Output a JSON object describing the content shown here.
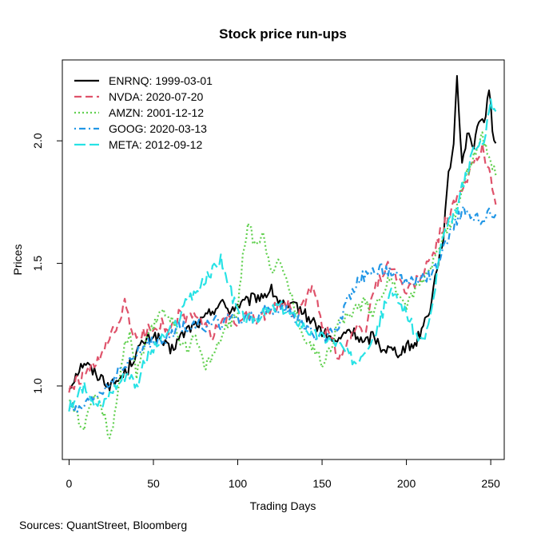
{
  "chart_data": {
    "type": "line",
    "title": "Stock price run-ups",
    "xlabel": "Trading Days",
    "ylabel": "Prices",
    "source": "Sources: QuantStreet, Bloomberg",
    "xlim": [
      -4,
      258
    ],
    "ylim": [
      0.7,
      2.33
    ],
    "xticks": [
      0,
      50,
      100,
      150,
      200,
      250
    ],
    "xtick_labels": [
      "0",
      "50",
      "100",
      "150",
      "200",
      "250"
    ],
    "yticks": [
      1.0,
      1.5,
      2.0
    ],
    "ytick_labels": [
      "1.0",
      "1.5",
      "2.0"
    ],
    "legend_position": "top-left",
    "series": [
      {
        "name": "ENRNQ: 1999-03-01",
        "color": "#000000",
        "dash": "solid",
        "anchors": [
          [
            0,
            0.99
          ],
          [
            4,
            1.05
          ],
          [
            9,
            1.1
          ],
          [
            14,
            1.06
          ],
          [
            20,
            1.03
          ],
          [
            25,
            1.0
          ],
          [
            30,
            1.03
          ],
          [
            35,
            1.07
          ],
          [
            40,
            1.14
          ],
          [
            45,
            1.18
          ],
          [
            50,
            1.21
          ],
          [
            55,
            1.18
          ],
          [
            60,
            1.14
          ],
          [
            65,
            1.19
          ],
          [
            70,
            1.23
          ],
          [
            75,
            1.25
          ],
          [
            80,
            1.27
          ],
          [
            85,
            1.31
          ],
          [
            90,
            1.34
          ],
          [
            95,
            1.31
          ],
          [
            100,
            1.33
          ],
          [
            105,
            1.34
          ],
          [
            110,
            1.36
          ],
          [
            115,
            1.37
          ],
          [
            120,
            1.39
          ],
          [
            125,
            1.34
          ],
          [
            130,
            1.31
          ],
          [
            135,
            1.33
          ],
          [
            140,
            1.29
          ],
          [
            145,
            1.26
          ],
          [
            150,
            1.22
          ],
          [
            155,
            1.19
          ],
          [
            160,
            1.18
          ],
          [
            165,
            1.23
          ],
          [
            170,
            1.21
          ],
          [
            175,
            1.17
          ],
          [
            180,
            1.21
          ],
          [
            185,
            1.16
          ],
          [
            190,
            1.15
          ],
          [
            195,
            1.14
          ],
          [
            200,
            1.16
          ],
          [
            205,
            1.17
          ],
          [
            210,
            1.25
          ],
          [
            214,
            1.32
          ],
          [
            218,
            1.48
          ],
          [
            222,
            1.62
          ],
          [
            225,
            1.85
          ],
          [
            228,
            2.0
          ],
          [
            230,
            2.26
          ],
          [
            233,
            1.92
          ],
          [
            237,
            2.05
          ],
          [
            240,
            1.95
          ],
          [
            243,
            2.1
          ],
          [
            246,
            2.05
          ],
          [
            249,
            2.22
          ],
          [
            251,
            2.05
          ],
          [
            253,
            1.99
          ]
        ],
        "values": []
      },
      {
        "name": "NVDA: 2020-07-20",
        "color": "#DF536B",
        "dash": "dashed",
        "anchors": [
          [
            0,
            0.98
          ],
          [
            5,
            1.02
          ],
          [
            10,
            1.05
          ],
          [
            15,
            1.08
          ],
          [
            20,
            1.13
          ],
          [
            25,
            1.21
          ],
          [
            30,
            1.24
          ],
          [
            33,
            1.36
          ],
          [
            36,
            1.26
          ],
          [
            40,
            1.18
          ],
          [
            45,
            1.22
          ],
          [
            50,
            1.24
          ],
          [
            55,
            1.26
          ],
          [
            60,
            1.22
          ],
          [
            65,
            1.29
          ],
          [
            70,
            1.27
          ],
          [
            75,
            1.3
          ],
          [
            80,
            1.24
          ],
          [
            85,
            1.21
          ],
          [
            90,
            1.26
          ],
          [
            95,
            1.28
          ],
          [
            100,
            1.25
          ],
          [
            105,
            1.3
          ],
          [
            110,
            1.26
          ],
          [
            115,
            1.29
          ],
          [
            120,
            1.31
          ],
          [
            125,
            1.34
          ],
          [
            130,
            1.33
          ],
          [
            135,
            1.28
          ],
          [
            140,
            1.35
          ],
          [
            145,
            1.4
          ],
          [
            150,
            1.26
          ],
          [
            155,
            1.2
          ],
          [
            160,
            1.12
          ],
          [
            165,
            1.18
          ],
          [
            170,
            1.24
          ],
          [
            175,
            1.2
          ],
          [
            180,
            1.38
          ],
          [
            185,
            1.45
          ],
          [
            190,
            1.5
          ],
          [
            195,
            1.44
          ],
          [
            200,
            1.38
          ],
          [
            205,
            1.42
          ],
          [
            210,
            1.46
          ],
          [
            215,
            1.52
          ],
          [
            220,
            1.62
          ],
          [
            225,
            1.7
          ],
          [
            230,
            1.76
          ],
          [
            235,
            1.82
          ],
          [
            240,
            1.92
          ],
          [
            245,
            1.97
          ],
          [
            250,
            1.85
          ],
          [
            253,
            1.74
          ]
        ],
        "values": []
      },
      {
        "name": "AMZN: 2001-12-12",
        "color": "#61D04F",
        "dash": "dotted",
        "anchors": [
          [
            0,
            0.95
          ],
          [
            5,
            0.88
          ],
          [
            8,
            0.82
          ],
          [
            12,
            0.89
          ],
          [
            16,
            0.96
          ],
          [
            20,
            0.9
          ],
          [
            24,
            0.77
          ],
          [
            28,
            0.93
          ],
          [
            32,
            1.14
          ],
          [
            36,
            1.22
          ],
          [
            40,
            1.05
          ],
          [
            45,
            1.16
          ],
          [
            50,
            1.24
          ],
          [
            55,
            1.32
          ],
          [
            60,
            1.28
          ],
          [
            65,
            1.2
          ],
          [
            70,
            1.16
          ],
          [
            75,
            1.2
          ],
          [
            80,
            1.08
          ],
          [
            85,
            1.12
          ],
          [
            90,
            1.2
          ],
          [
            95,
            1.25
          ],
          [
            100,
            1.31
          ],
          [
            103,
            1.52
          ],
          [
            106,
            1.67
          ],
          [
            110,
            1.58
          ],
          [
            115,
            1.62
          ],
          [
            120,
            1.48
          ],
          [
            125,
            1.5
          ],
          [
            130,
            1.42
          ],
          [
            135,
            1.28
          ],
          [
            140,
            1.2
          ],
          [
            145,
            1.15
          ],
          [
            150,
            1.1
          ],
          [
            155,
            1.16
          ],
          [
            160,
            1.26
          ],
          [
            165,
            1.28
          ],
          [
            170,
            1.32
          ],
          [
            175,
            1.34
          ],
          [
            180,
            1.3
          ],
          [
            185,
            1.38
          ],
          [
            190,
            1.43
          ],
          [
            195,
            1.39
          ],
          [
            200,
            1.33
          ],
          [
            205,
            1.39
          ],
          [
            210,
            1.44
          ],
          [
            215,
            1.5
          ],
          [
            220,
            1.58
          ],
          [
            225,
            1.65
          ],
          [
            230,
            1.72
          ],
          [
            235,
            1.85
          ],
          [
            240,
            1.94
          ],
          [
            245,
            2.02
          ],
          [
            250,
            1.92
          ],
          [
            253,
            1.86
          ]
        ],
        "values": []
      },
      {
        "name": "GOOG: 2020-03-13",
        "color": "#2297E6",
        "dash": "dotdash",
        "anchors": [
          [
            0,
            0.92
          ],
          [
            5,
            0.89
          ],
          [
            10,
            0.92
          ],
          [
            15,
            0.95
          ],
          [
            20,
            0.98
          ],
          [
            25,
            1.02
          ],
          [
            30,
            1.06
          ],
          [
            35,
            1.09
          ],
          [
            40,
            1.13
          ],
          [
            45,
            1.16
          ],
          [
            50,
            1.19
          ],
          [
            55,
            1.17
          ],
          [
            60,
            1.2
          ],
          [
            65,
            1.25
          ],
          [
            70,
            1.24
          ],
          [
            75,
            1.26
          ],
          [
            80,
            1.23
          ],
          [
            85,
            1.27
          ],
          [
            90,
            1.25
          ],
          [
            95,
            1.28
          ],
          [
            100,
            1.26
          ],
          [
            105,
            1.29
          ],
          [
            110,
            1.27
          ],
          [
            115,
            1.31
          ],
          [
            120,
            1.29
          ],
          [
            125,
            1.32
          ],
          [
            130,
            1.3
          ],
          [
            135,
            1.28
          ],
          [
            140,
            1.24
          ],
          [
            145,
            1.21
          ],
          [
            150,
            1.19
          ],
          [
            155,
            1.22
          ],
          [
            160,
            1.25
          ],
          [
            165,
            1.35
          ],
          [
            170,
            1.42
          ],
          [
            175,
            1.45
          ],
          [
            180,
            1.47
          ],
          [
            185,
            1.48
          ],
          [
            190,
            1.46
          ],
          [
            195,
            1.44
          ],
          [
            200,
            1.42
          ],
          [
            205,
            1.43
          ],
          [
            210,
            1.44
          ],
          [
            215,
            1.46
          ],
          [
            220,
            1.52
          ],
          [
            225,
            1.6
          ],
          [
            230,
            1.68
          ],
          [
            235,
            1.72
          ],
          [
            240,
            1.69
          ],
          [
            245,
            1.66
          ],
          [
            250,
            1.71
          ],
          [
            253,
            1.7
          ]
        ],
        "values": []
      },
      {
        "name": "META: 2012-09-12",
        "color": "#28E2E5",
        "dash": "longdash",
        "anchors": [
          [
            0,
            0.91
          ],
          [
            5,
            0.96
          ],
          [
            10,
            1.0
          ],
          [
            15,
            0.94
          ],
          [
            20,
            0.92
          ],
          [
            25,
            0.98
          ],
          [
            30,
            1.02
          ],
          [
            35,
            1.06
          ],
          [
            40,
            1.0
          ],
          [
            45,
            1.1
          ],
          [
            50,
            1.15
          ],
          [
            55,
            1.19
          ],
          [
            60,
            1.22
          ],
          [
            65,
            1.27
          ],
          [
            70,
            1.36
          ],
          [
            75,
            1.38
          ],
          [
            80,
            1.42
          ],
          [
            85,
            1.47
          ],
          [
            90,
            1.52
          ],
          [
            95,
            1.4
          ],
          [
            100,
            1.3
          ],
          [
            105,
            1.27
          ],
          [
            110,
            1.28
          ],
          [
            115,
            1.29
          ],
          [
            120,
            1.31
          ],
          [
            125,
            1.33
          ],
          [
            130,
            1.3
          ],
          [
            135,
            1.27
          ],
          [
            140,
            1.24
          ],
          [
            145,
            1.21
          ],
          [
            150,
            1.2
          ],
          [
            155,
            1.19
          ],
          [
            160,
            1.17
          ],
          [
            165,
            1.13
          ],
          [
            170,
            1.1
          ],
          [
            175,
            1.15
          ],
          [
            180,
            1.2
          ],
          [
            185,
            1.28
          ],
          [
            190,
            1.38
          ],
          [
            195,
            1.35
          ],
          [
            200,
            1.3
          ],
          [
            205,
            1.22
          ],
          [
            210,
            1.18
          ],
          [
            215,
            1.3
          ],
          [
            220,
            1.55
          ],
          [
            225,
            1.66
          ],
          [
            230,
            1.72
          ],
          [
            235,
            1.86
          ],
          [
            240,
            1.97
          ],
          [
            245,
            1.98
          ],
          [
            250,
            2.15
          ],
          [
            253,
            2.12
          ]
        ],
        "values": []
      }
    ]
  }
}
